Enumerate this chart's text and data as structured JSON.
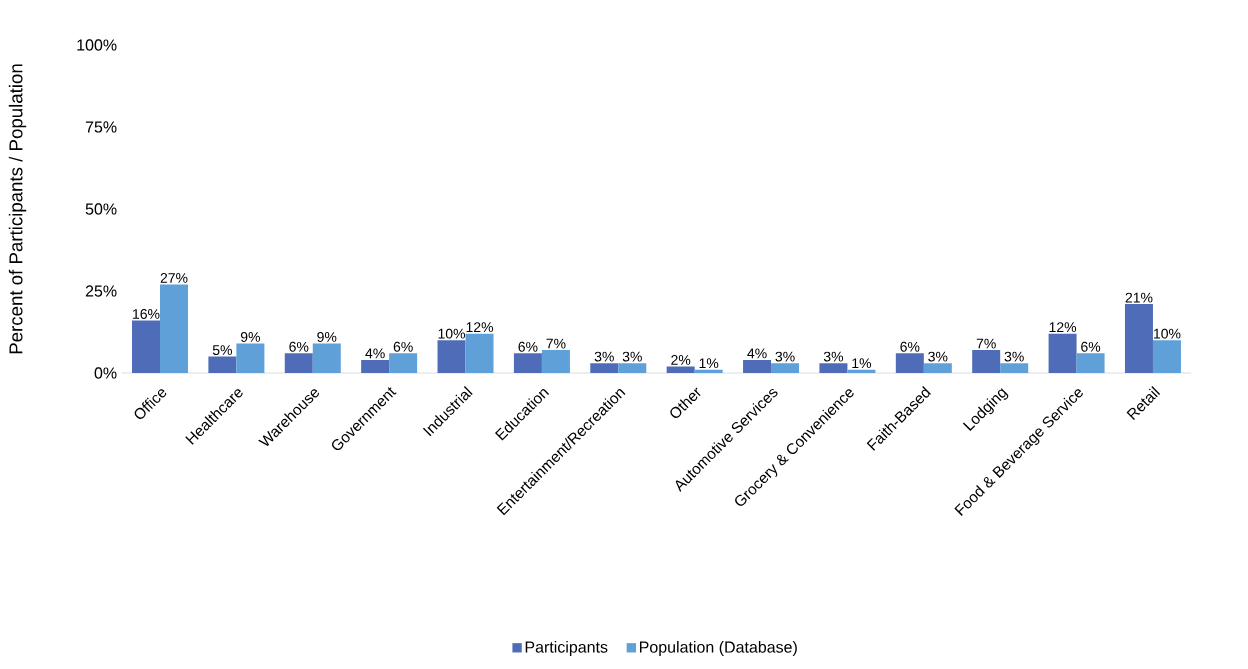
{
  "chart_data": {
    "type": "bar",
    "ylabel": "Percent of Participants / Population",
    "categories": [
      "Office",
      "Healthcare",
      "Warehouse",
      "Government",
      "Industrial",
      "Education",
      "Entertainment/Recreation",
      "Other",
      "Automotive Services",
      "Grocery & Convenience",
      "Faith-Based",
      "Lodging",
      "Food & Beverage Service",
      "Retail"
    ],
    "series": [
      {
        "name": "Participants",
        "color": "#4e6cb8",
        "values": [
          16,
          5,
          6,
          4,
          10,
          6,
          3,
          2,
          4,
          3,
          6,
          7,
          12,
          21
        ],
        "value_labels": [
          "16%",
          "5%",
          "6%",
          "4%",
          "10%",
          "6%",
          "3%",
          "2%",
          "4%",
          "3%",
          "6%",
          "7%",
          "12%",
          "21%"
        ]
      },
      {
        "name": "Population (Database)",
        "color": "#5fa0d8",
        "values": [
          27,
          9,
          9,
          6,
          12,
          7,
          3,
          1,
          3,
          1,
          3,
          3,
          6,
          10
        ],
        "value_labels": [
          "27%",
          "9%",
          "9%",
          "6%",
          "12%",
          "7%",
          "3%",
          "1%",
          "3%",
          "1%",
          "3%",
          "3%",
          "6%",
          "10%"
        ]
      }
    ],
    "ylim": [
      0,
      100
    ],
    "yticks": [
      {
        "value": 0,
        "label": "0%"
      },
      {
        "value": 25,
        "label": "25%"
      },
      {
        "value": 50,
        "label": "50%"
      },
      {
        "value": 75,
        "label": "75%"
      },
      {
        "value": 100,
        "label": "100%"
      }
    ],
    "legend": "bottom"
  }
}
